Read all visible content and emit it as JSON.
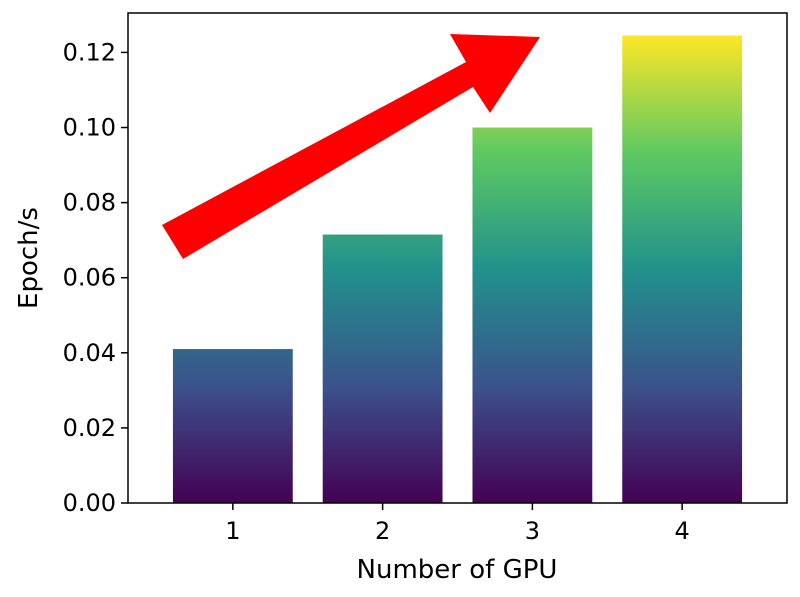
{
  "chart_data": {
    "type": "bar",
    "categories": [
      "1",
      "2",
      "3",
      "4"
    ],
    "values": [
      0.041,
      0.0715,
      0.1,
      0.1245
    ],
    "xlabel": "Number of GPU",
    "ylabel": "Epoch/s",
    "ylim": [
      0,
      0.1305
    ],
    "yticks": [
      0.0,
      0.02,
      0.04,
      0.06,
      0.08,
      0.1,
      0.12
    ],
    "ytick_labels": [
      "0.00",
      "0.02",
      "0.04",
      "0.06",
      "0.08",
      "0.10",
      "0.12"
    ],
    "grid": false,
    "legend": "none",
    "colormap": "viridis",
    "gradient_colors": [
      "#440154",
      "#3b528b",
      "#21918c",
      "#5ec962",
      "#fde725"
    ],
    "annotation": {
      "type": "arrow",
      "direction": "up-right",
      "color": "#ff0000"
    }
  }
}
